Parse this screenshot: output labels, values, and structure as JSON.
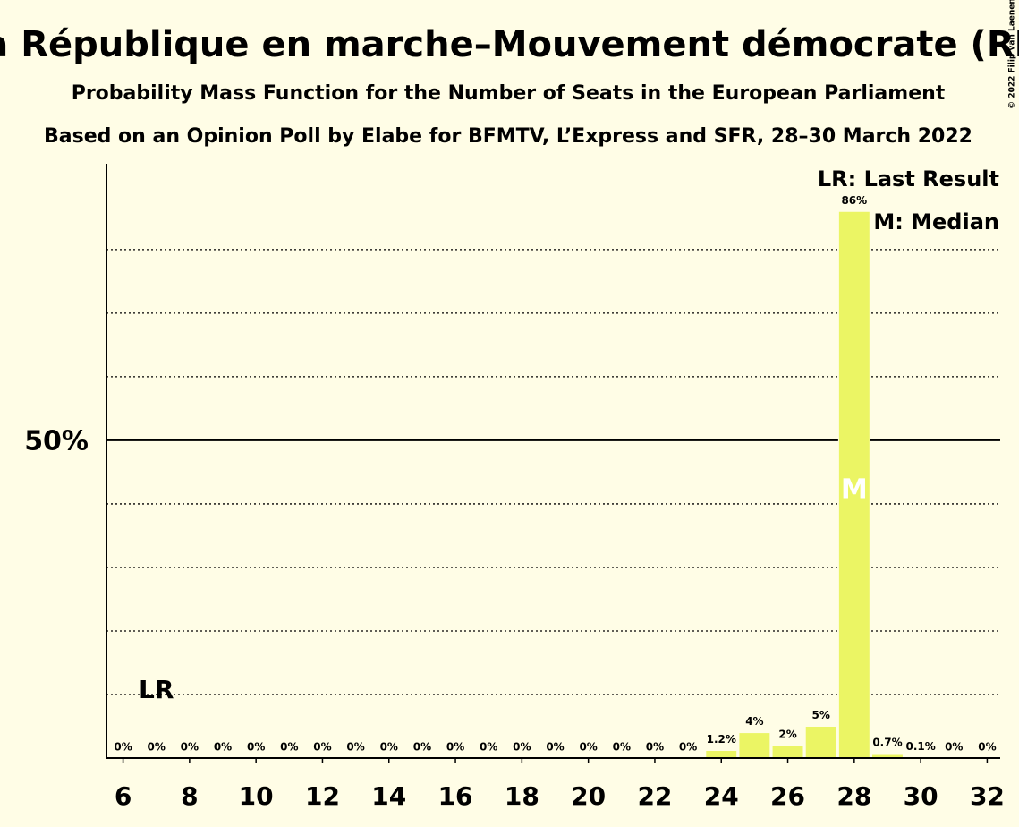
{
  "chart_data": {
    "type": "bar",
    "title": "La République en marche–Mouvement démocrate (RE)",
    "subtitle": "Probability Mass Function for the Number of Seats in the European Parliament",
    "subtitle2": "Based on an Opinion Poll by Elabe for BFMTV, L’Express and SFR, 28–30 March 2022",
    "copyright": "© 2022 Filip van Laenen",
    "x": [
      6,
      7,
      8,
      9,
      10,
      11,
      12,
      13,
      14,
      15,
      16,
      17,
      18,
      19,
      20,
      21,
      22,
      23,
      24,
      25,
      26,
      27,
      28,
      29,
      30,
      31,
      32
    ],
    "values": [
      0,
      0,
      0,
      0,
      0,
      0,
      0,
      0,
      0,
      0,
      0,
      0,
      0,
      0,
      0,
      0,
      0,
      0,
      1.2,
      4,
      2,
      5,
      86,
      0.7,
      0.1,
      0,
      0
    ],
    "value_labels": [
      "0%",
      "0%",
      "0%",
      "0%",
      "0%",
      "0%",
      "0%",
      "0%",
      "0%",
      "0%",
      "0%",
      "0%",
      "0%",
      "0%",
      "0%",
      "0%",
      "0%",
      "0%",
      "1.2%",
      "4%",
      "2%",
      "5%",
      "86%",
      "0.7%",
      "0.1%",
      "0%",
      "0%"
    ],
    "color": "#ebf564",
    "xlim": [
      5.5,
      32.5
    ],
    "xticks": [
      6,
      8,
      10,
      12,
      14,
      16,
      18,
      20,
      22,
      24,
      26,
      28,
      30,
      32
    ],
    "ylim": [
      0,
      93.5
    ],
    "yticks": [
      {
        "value": 50,
        "label": "50%"
      }
    ],
    "grid_lines": [
      10,
      20,
      30,
      40,
      60,
      70,
      80
    ],
    "last_result": 7,
    "last_result_label": "LR",
    "median": 28,
    "median_label": "M",
    "legend": [
      "LR: Last Result",
      "M: Median"
    ]
  }
}
